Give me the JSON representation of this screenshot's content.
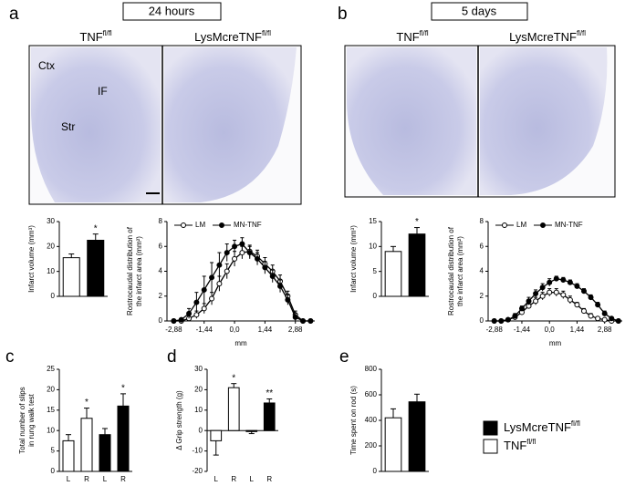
{
  "panels": {
    "a": "a",
    "b": "b",
    "c": "c",
    "d": "d",
    "e": "e"
  },
  "headings": [
    "24 hours",
    "5 days"
  ],
  "group_titles": [
    {
      "text": "TNF",
      "sup": "fl/fl"
    },
    {
      "text": "LysMcreTNF",
      "sup": "fl/fl"
    }
  ],
  "region_labels": [
    "Ctx",
    "IF",
    "Str"
  ],
  "legend": [
    {
      "name": {
        "text": "LysMcreTNF",
        "sup": "fl/fl"
      },
      "color": "#000000"
    },
    {
      "name": {
        "text": "TNF",
        "sup": "fl/fl"
      },
      "color": "#ffffff"
    }
  ],
  "chart_data": [
    {
      "type": "bar",
      "ylabel": [
        "Infarct volume (mm³)"
      ],
      "categories": [
        null,
        null
      ],
      "values": [
        15.5,
        22.5
      ],
      "errors": [
        1.5,
        2.5
      ],
      "colors": [
        "#ffffff",
        "#000000"
      ],
      "stars": [
        null,
        "*"
      ],
      "ylim": [
        0,
        30
      ],
      "yticks": [
        0,
        10,
        20,
        30
      ]
    },
    {
      "type": "line",
      "ylabel": [
        "Rostrocaudal distribution of",
        "the infarct area (mm²)"
      ],
      "xlabel": "mm",
      "x": [
        -2.88,
        -2.52,
        -2.16,
        -1.8,
        -1.44,
        -1.08,
        -0.72,
        -0.36,
        0,
        0.36,
        0.72,
        1.08,
        1.44,
        1.8,
        2.16,
        2.52,
        2.88,
        3.24,
        3.6
      ],
      "series": [
        {
          "name": "LM",
          "color": "#000000",
          "marker": "open",
          "values": [
            0,
            0,
            0.2,
            0.5,
            1,
            1.8,
            3,
            4,
            5,
            5.5,
            5.6,
            5.2,
            4.6,
            4,
            3.2,
            2,
            0.5,
            0,
            0
          ],
          "errors": [
            0,
            0,
            0.2,
            0.3,
            0.4,
            0.5,
            0.6,
            0.6,
            0.6,
            0.5,
            0.5,
            0.5,
            0.5,
            0.5,
            0.5,
            0.4,
            0.3,
            0,
            0
          ]
        },
        {
          "name": "MN-TNF",
          "color": "#000000",
          "marker": "filled",
          "values": [
            0,
            0.1,
            0.6,
            1.5,
            2.5,
            3.5,
            4.5,
            5.5,
            6,
            6.2,
            5.5,
            5,
            4.3,
            3.6,
            2.8,
            1.7,
            0.3,
            0,
            0
          ],
          "errors": [
            0,
            0.1,
            0.4,
            0.8,
            1.1,
            1.2,
            1,
            0.7,
            0.5,
            0.5,
            0.5,
            0.5,
            0.5,
            0.5,
            0.5,
            0.4,
            0.3,
            0,
            0
          ]
        }
      ],
      "xlim": [
        -3.2,
        3.8
      ],
      "xticks": [
        {
          "value": -2.88,
          "label": "-2,88"
        },
        {
          "value": -1.44,
          "label": "-1,44"
        },
        {
          "value": 0,
          "label": "0,0"
        },
        {
          "value": 1.44,
          "label": "1,44"
        },
        {
          "value": 2.88,
          "label": "2,88"
        }
      ],
      "ylim": [
        0,
        8
      ],
      "yticks": [
        0,
        2,
        4,
        6,
        8
      ]
    },
    {
      "type": "bar",
      "ylabel": [
        "Infarct volume (mm³)"
      ],
      "categories": [
        null,
        null
      ],
      "values": [
        9,
        12.5
      ],
      "errors": [
        1,
        1.3
      ],
      "colors": [
        "#ffffff",
        "#000000"
      ],
      "stars": [
        null,
        "*"
      ],
      "ylim": [
        0,
        15
      ],
      "yticks": [
        0,
        5,
        10,
        15
      ]
    },
    {
      "type": "line",
      "ylabel": [
        "Rostrocaudal distribution of",
        "the infarct area (mm²)"
      ],
      "xlabel": "mm",
      "x": [
        -2.88,
        -2.52,
        -2.16,
        -1.8,
        -1.44,
        -1.08,
        -0.72,
        -0.36,
        0,
        0.36,
        0.72,
        1.08,
        1.44,
        1.8,
        2.16,
        2.52,
        2.88,
        3.24,
        3.6
      ],
      "series": [
        {
          "name": "LM",
          "color": "#000000",
          "marker": "open",
          "values": [
            0,
            0,
            0.1,
            0.3,
            0.7,
            1.2,
            1.6,
            2,
            2.3,
            2.3,
            2.1,
            1.7,
            1.3,
            0.8,
            0.4,
            0.2,
            0.1,
            0,
            0
          ],
          "errors": [
            0,
            0,
            0.1,
            0.1,
            0.2,
            0.2,
            0.3,
            0.3,
            0.3,
            0.3,
            0.3,
            0.3,
            0.2,
            0.2,
            0.2,
            0.1,
            0.1,
            0,
            0
          ]
        },
        {
          "name": "MN-TNF",
          "color": "#000000",
          "marker": "filled",
          "values": [
            0,
            0,
            0.1,
            0.4,
            1,
            1.6,
            2.2,
            2.7,
            3.1,
            3.4,
            3.3,
            3.1,
            2.8,
            2.4,
            1.9,
            1.3,
            0.6,
            0.2,
            0
          ],
          "errors": [
            0,
            0,
            0.1,
            0.2,
            0.2,
            0.3,
            0.3,
            0.3,
            0.3,
            0.2,
            0.2,
            0.2,
            0.2,
            0.2,
            0.2,
            0.2,
            0.2,
            0.1,
            0
          ]
        }
      ],
      "xlim": [
        -3.2,
        3.8
      ],
      "xticks": [
        {
          "value": -2.88,
          "label": "-2,88"
        },
        {
          "value": -1.44,
          "label": "-1,44"
        },
        {
          "value": 0,
          "label": "0,0"
        },
        {
          "value": 1.44,
          "label": "1,44"
        },
        {
          "value": 2.88,
          "label": "2,88"
        }
      ],
      "ylim": [
        0,
        8
      ],
      "yticks": [
        0,
        2,
        4,
        6,
        8
      ]
    },
    {
      "type": "bar",
      "ylabel": [
        "Total number of slips",
        "in rung walk test"
      ],
      "categories": [
        "L",
        "R",
        "L",
        "R"
      ],
      "values": [
        7.5,
        13,
        9,
        16
      ],
      "errors": [
        1.5,
        2.5,
        1.5,
        3
      ],
      "colors": [
        "#ffffff",
        "#ffffff",
        "#000000",
        "#000000"
      ],
      "stars": [
        null,
        "*",
        null,
        "*"
      ],
      "ylim": [
        0,
        25
      ],
      "yticks": [
        0,
        5,
        10,
        15,
        20,
        25
      ]
    },
    {
      "type": "bar",
      "ylabel": [
        "Δ Grip strength (g)"
      ],
      "categories": [
        "L",
        "R",
        "L",
        "R"
      ],
      "values": [
        -5,
        21,
        -0.5,
        13.5
      ],
      "errors": [
        7,
        2,
        1,
        2
      ],
      "colors": [
        "#ffffff",
        "#ffffff",
        "#000000",
        "#000000"
      ],
      "stars": [
        null,
        "*",
        null,
        "**"
      ],
      "ylim": [
        -20,
        30
      ],
      "yticks": [
        -20,
        -10,
        0,
        10,
        20,
        30
      ]
    },
    {
      "type": "bar",
      "ylabel": [
        "Time spent on rod (s)"
      ],
      "categories": [
        null,
        null
      ],
      "values": [
        420,
        545
      ],
      "errors": [
        70,
        60
      ],
      "colors": [
        "#ffffff",
        "#000000"
      ],
      "stars": [
        null,
        null
      ],
      "ylim": [
        0,
        800
      ],
      "yticks": [
        0,
        200,
        400,
        600,
        800
      ]
    }
  ]
}
